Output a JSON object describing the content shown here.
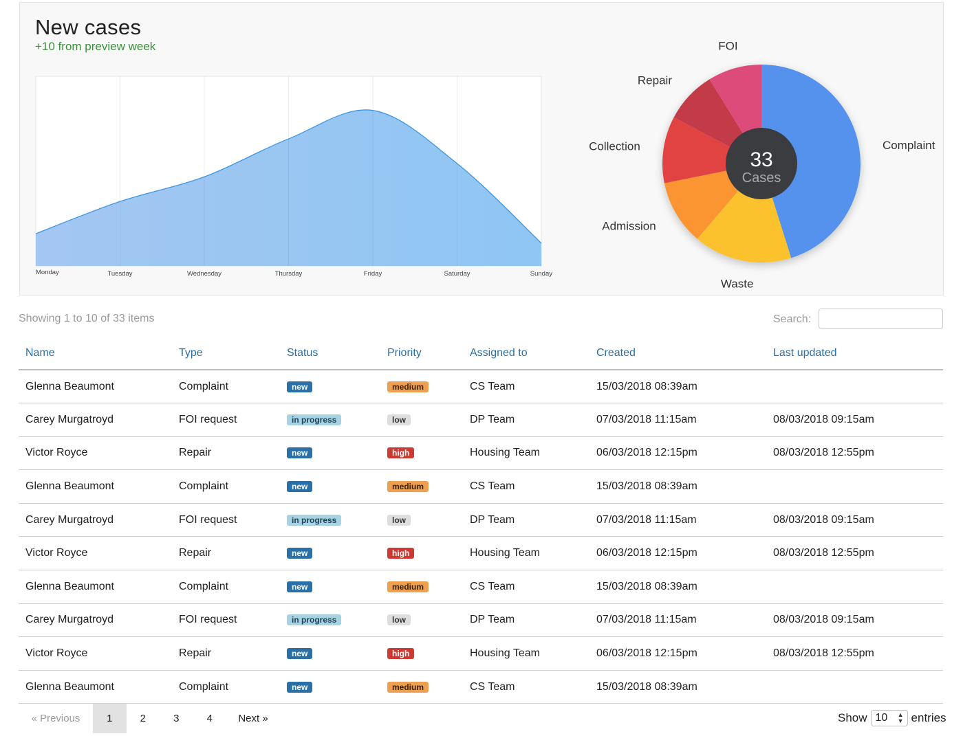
{
  "panel": {
    "title": "New cases",
    "subtitle": "+10 from preview week"
  },
  "chart_data": [
    {
      "type": "area",
      "categories": [
        "Monday",
        "Tuesday",
        "Wednesday",
        "Thursday",
        "Friday",
        "Saturday",
        "Sunday"
      ],
      "values": [
        17,
        34,
        47,
        67,
        82,
        54,
        12
      ],
      "ylim": [
        0,
        100
      ],
      "grid": "vertical",
      "color": "#8fc6f3",
      "line_color": "#3e97de"
    },
    {
      "type": "pie",
      "categories": [
        "Complaint",
        "Waste",
        "Admission",
        "Collection",
        "Repair",
        "FOI"
      ],
      "values": [
        14.9,
        5.3,
        3.5,
        3.6,
        2.8,
        2.9
      ],
      "colors": [
        "#5592ee",
        "#fbc22e",
        "#fa9533",
        "#e14242",
        "#c33b48",
        "#dc4b79"
      ],
      "center_value": "33",
      "center_label": "Cases"
    }
  ],
  "table": {
    "summary": "Showing 1 to 10 of 33 items",
    "search_label": "Search:",
    "search_value": "",
    "columns": [
      "Name",
      "Type",
      "Status",
      "Priority",
      "Assigned to",
      "Created",
      "Last updated"
    ],
    "rows": [
      [
        "Glenna Beaumont",
        "Complaint",
        "new",
        "medium",
        "CS Team",
        "15/03/2018 08:39am",
        ""
      ],
      [
        "Carey Murgatroyd",
        "FOI request",
        "in progress",
        "low",
        "DP Team",
        "07/03/2018 11:15am",
        "08/03/2018 09:15am"
      ],
      [
        "Victor Royce",
        "Repair",
        "new",
        "high",
        "Housing Team",
        "06/03/2018 12:15pm",
        "08/03/2018 12:55pm"
      ],
      [
        "Glenna Beaumont",
        "Complaint",
        "new",
        "medium",
        "CS Team",
        "15/03/2018 08:39am",
        ""
      ],
      [
        "Carey Murgatroyd",
        "FOI request",
        "in progress",
        "low",
        "DP Team",
        "07/03/2018 11:15am",
        "08/03/2018 09:15am"
      ],
      [
        "Victor Royce",
        "Repair",
        "new",
        "high",
        "Housing Team",
        "06/03/2018 12:15pm",
        "08/03/2018 12:55pm"
      ],
      [
        "Glenna Beaumont",
        "Complaint",
        "new",
        "medium",
        "CS Team",
        "15/03/2018 08:39am",
        ""
      ],
      [
        "Carey Murgatroyd",
        "FOI request",
        "in progress",
        "low",
        "DP Team",
        "07/03/2018 11:15am",
        "08/03/2018 09:15am"
      ],
      [
        "Victor Royce",
        "Repair",
        "new",
        "high",
        "Housing Team",
        "06/03/2018 12:15pm",
        "08/03/2018 12:55pm"
      ],
      [
        "Glenna Beaumont",
        "Complaint",
        "new",
        "medium",
        "CS Team",
        "15/03/2018 08:39am",
        ""
      ]
    ],
    "status_colors": {
      "new": "#2a6fa6",
      "in progress": "#a6d3e2"
    },
    "priority_colors": {
      "medium": "#ee9f4f",
      "low": "#dedede",
      "high": "#cc3a32"
    }
  },
  "pagination": {
    "prev_label": "« Previous",
    "pages": [
      "1",
      "2",
      "3",
      "4"
    ],
    "active_page": "1",
    "next_label": "Next »"
  },
  "entries": {
    "show_label": "Show",
    "value": "10",
    "suffix": "entries"
  }
}
